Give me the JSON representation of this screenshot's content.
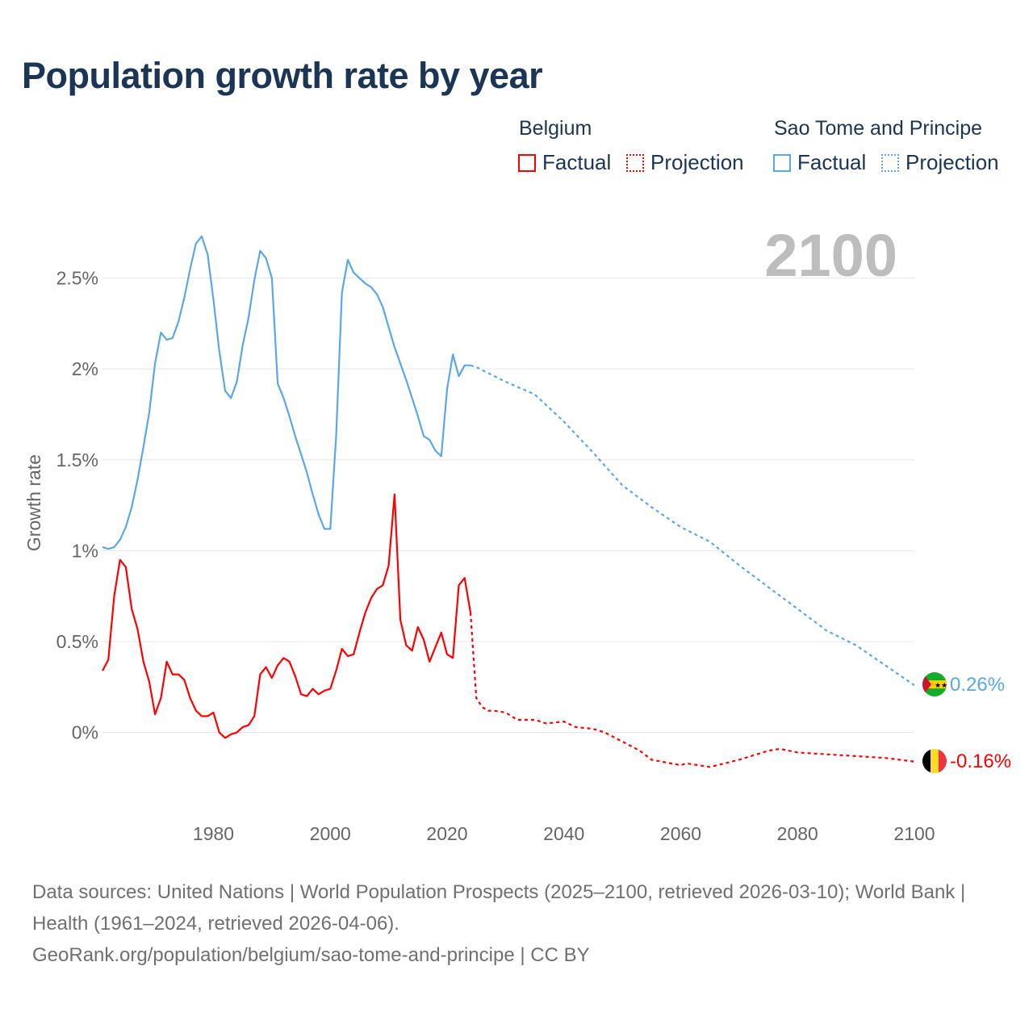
{
  "title": "Population growth rate by year",
  "legend": {
    "groups": [
      {
        "name": "Belgium",
        "factual": "Factual",
        "projection": "Projection",
        "color": "#ff0000"
      },
      {
        "name": "Sao Tome and Principe",
        "factual": "Factual",
        "projection": "Projection",
        "color": "#5aa7ea"
      }
    ]
  },
  "year_label": "2100",
  "end_labels": {
    "stp": "0.26%",
    "belgium": "-0.16%"
  },
  "footer": {
    "sources": "Data sources: United Nations | World Population Prospects (2025–2100, retrieved 2026-03-10); World Bank | Health (1961–2024, retrieved 2026-04-06).",
    "url": "GeoRank.org/population/belgium/sao-tome-and-principe | CC BY"
  },
  "chart_data": {
    "type": "line",
    "title": "Population growth rate by year",
    "xlabel": "",
    "ylabel": "Growth rate",
    "xlim": [
      1961,
      2100
    ],
    "ylim": [
      -0.45,
      2.8
    ],
    "x_ticks": [
      "1980",
      "2000",
      "2020",
      "2040",
      "2060",
      "2080",
      "2100"
    ],
    "y_ticks": [
      {
        "v": 0,
        "label": "0%"
      },
      {
        "v": 0.5,
        "label": "0.5%"
      },
      {
        "v": 1,
        "label": "1%"
      },
      {
        "v": 1.5,
        "label": "1.5%"
      },
      {
        "v": 2,
        "label": "2%"
      },
      {
        "v": 2.5,
        "label": "2.5%"
      }
    ],
    "grid": true,
    "legend_position": "top-right",
    "series": [
      {
        "name": "Sao Tome and Principe",
        "kind": "Factual",
        "color": "#5aa7ea",
        "x": [
          1961,
          1962,
          1963,
          1964,
          1965,
          1966,
          1967,
          1968,
          1969,
          1970,
          1971,
          1972,
          1973,
          1974,
          1975,
          1976,
          1977,
          1978,
          1979,
          1980,
          1981,
          1982,
          1983,
          1984,
          1985,
          1986,
          1987,
          1988,
          1989,
          1990,
          1991,
          1992,
          1993,
          1994,
          1995,
          1996,
          1997,
          1998,
          1999,
          2000,
          2001,
          2002,
          2003,
          2004,
          2005,
          2006,
          2007,
          2008,
          2009,
          2010,
          2011,
          2012,
          2013,
          2014,
          2015,
          2016,
          2017,
          2018,
          2019,
          2020,
          2021,
          2022,
          2023,
          2024
        ],
        "y": [
          1.02,
          1.01,
          1.02,
          1.06,
          1.13,
          1.24,
          1.39,
          1.57,
          1.76,
          2.03,
          2.2,
          2.16,
          2.17,
          2.26,
          2.39,
          2.55,
          2.69,
          2.73,
          2.63,
          2.38,
          2.1,
          1.88,
          1.84,
          1.93,
          2.13,
          2.28,
          2.49,
          2.65,
          2.61,
          2.5,
          1.92,
          1.84,
          1.74,
          1.63,
          1.53,
          1.43,
          1.31,
          1.2,
          1.12,
          1.12,
          1.63,
          2.42,
          2.6,
          2.53,
          2.5,
          2.47,
          2.45,
          2.41,
          2.34,
          2.23,
          2.12,
          2.03,
          1.94,
          1.84,
          1.74,
          1.63,
          1.61,
          1.55,
          1.52,
          1.89,
          2.08,
          1.96,
          2.02,
          2.02
        ]
      },
      {
        "name": "Sao Tome and Principe",
        "kind": "Projection",
        "color": "#5aa7ea",
        "x": [
          2024,
          2025,
          2030,
          2035,
          2040,
          2045,
          2050,
          2055,
          2060,
          2065,
          2070,
          2075,
          2080,
          2085,
          2090,
          2095,
          2100
        ],
        "y": [
          2.02,
          2.01,
          1.93,
          1.86,
          1.71,
          1.54,
          1.36,
          1.24,
          1.13,
          1.05,
          0.92,
          0.8,
          0.68,
          0.56,
          0.48,
          0.37,
          0.26
        ]
      },
      {
        "name": "Belgium",
        "kind": "Factual",
        "color": "#ff0000",
        "x": [
          1961,
          1962,
          1963,
          1964,
          1965,
          1966,
          1967,
          1968,
          1969,
          1970,
          1971,
          1972,
          1973,
          1974,
          1975,
          1976,
          1977,
          1978,
          1979,
          1980,
          1981,
          1982,
          1983,
          1984,
          1985,
          1986,
          1987,
          1988,
          1989,
          1990,
          1991,
          1992,
          1993,
          1994,
          1995,
          1996,
          1997,
          1998,
          1999,
          2000,
          2001,
          2002,
          2003,
          2004,
          2005,
          2006,
          2007,
          2008,
          2009,
          2010,
          2011,
          2012,
          2013,
          2014,
          2015,
          2016,
          2017,
          2018,
          2019,
          2020,
          2021,
          2022,
          2023,
          2024
        ],
        "y": [
          0.34,
          0.4,
          0.75,
          0.95,
          0.91,
          0.68,
          0.57,
          0.39,
          0.28,
          0.1,
          0.19,
          0.39,
          0.32,
          0.32,
          0.29,
          0.19,
          0.12,
          0.09,
          0.09,
          0.11,
          0.0,
          -0.03,
          -0.01,
          0.0,
          0.03,
          0.04,
          0.09,
          0.32,
          0.36,
          0.3,
          0.37,
          0.41,
          0.39,
          0.31,
          0.21,
          0.2,
          0.24,
          0.21,
          0.23,
          0.24,
          0.34,
          0.46,
          0.42,
          0.43,
          0.55,
          0.66,
          0.74,
          0.79,
          0.81,
          0.92,
          1.31,
          0.62,
          0.48,
          0.45,
          0.58,
          0.51,
          0.39,
          0.47,
          0.55,
          0.43,
          0.41,
          0.81,
          0.85,
          0.66
        ]
      },
      {
        "name": "Belgium",
        "kind": "Projection",
        "color": "#ff0000",
        "x": [
          2024,
          2025,
          2026,
          2027,
          2028,
          2030,
          2032,
          2035,
          2037,
          2040,
          2042,
          2045,
          2047,
          2050,
          2053,
          2055,
          2060,
          2061,
          2065,
          2070,
          2075,
          2077,
          2080,
          2085,
          2090,
          2095,
          2100
        ],
        "y": [
          0.66,
          0.19,
          0.14,
          0.12,
          0.12,
          0.11,
          0.07,
          0.07,
          0.05,
          0.06,
          0.03,
          0.02,
          0.0,
          -0.05,
          -0.1,
          -0.15,
          -0.18,
          -0.17,
          -0.19,
          -0.15,
          -0.1,
          -0.09,
          -0.11,
          -0.12,
          -0.13,
          -0.14,
          -0.16
        ]
      }
    ]
  }
}
